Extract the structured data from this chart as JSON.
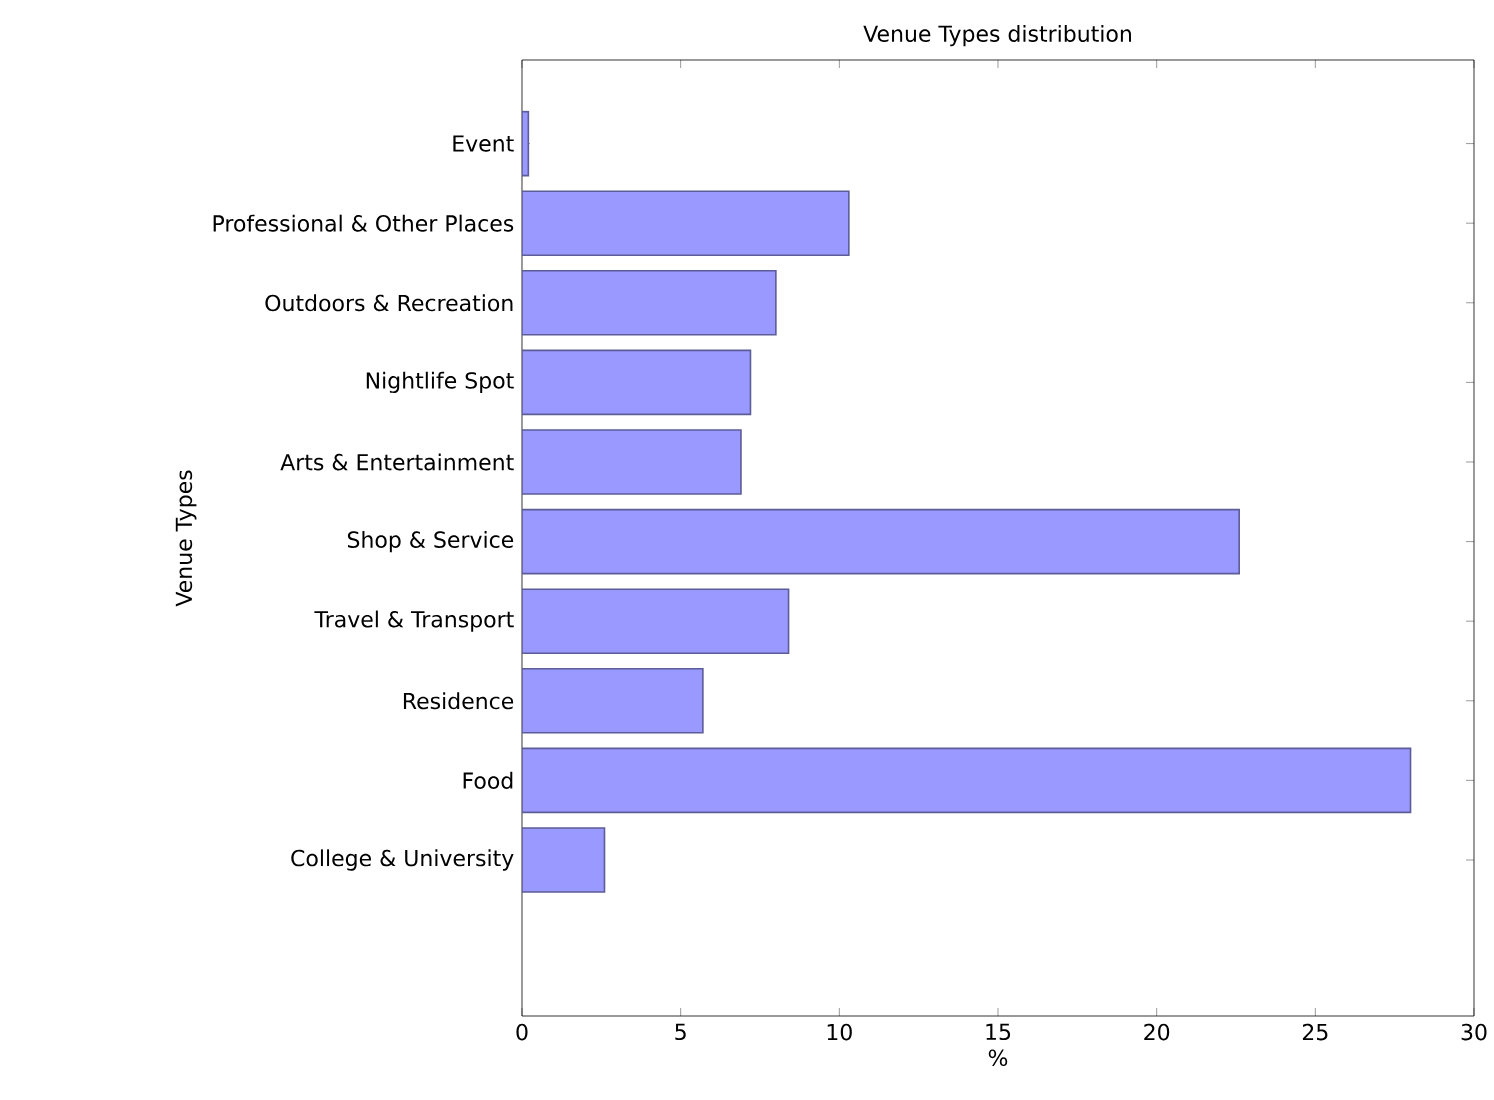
{
  "chart_data": {
    "type": "bar",
    "orientation": "horizontal",
    "title": "Venue Types distribution",
    "xlabel": "%",
    "ylabel": "Venue Types",
    "categories": [
      "Event",
      "Professional & Other Places",
      "Outdoors & Recreation",
      "Nightlife Spot",
      "Arts & Entertainment",
      "Shop & Service",
      "Travel & Transport",
      "Residence",
      "Food",
      "College & University"
    ],
    "values": [
      0.2,
      10.3,
      8.0,
      7.2,
      6.9,
      22.6,
      8.4,
      5.7,
      28.0,
      2.6
    ],
    "color": "#9999ff",
    "xlim": [
      0,
      30
    ],
    "xticks": [
      0,
      5,
      10,
      15,
      20,
      25,
      30
    ],
    "grid": false
  }
}
